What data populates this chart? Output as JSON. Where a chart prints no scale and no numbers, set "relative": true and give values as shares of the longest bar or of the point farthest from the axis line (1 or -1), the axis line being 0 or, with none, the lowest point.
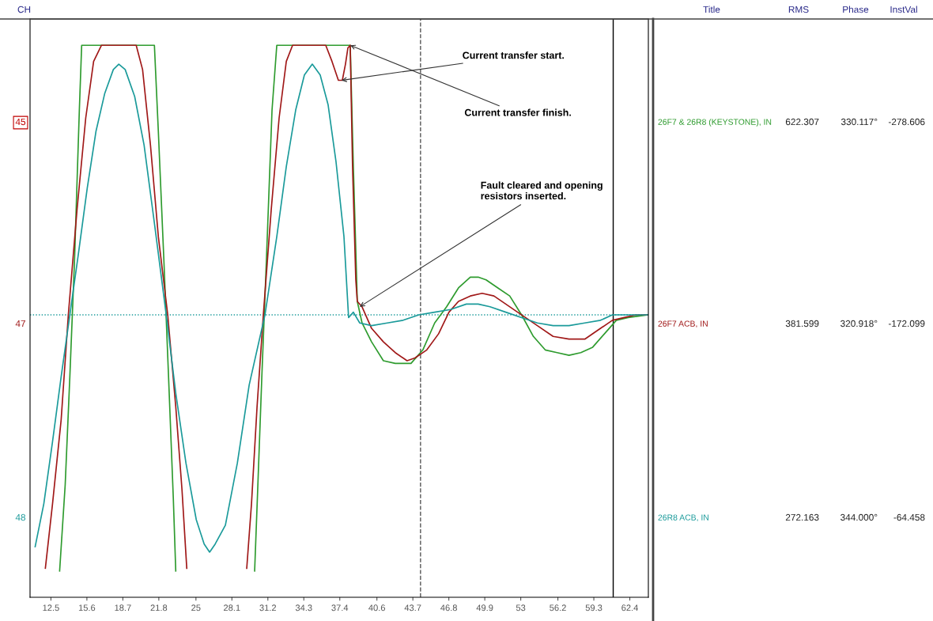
{
  "chart_data": {
    "type": "line",
    "relative": true,
    "tick_labels": "x",
    "legend": false,
    "grid": false,
    "marker": "none",
    "line_style": "solid",
    "xlim": [
      10.7,
      64
    ],
    "xticks": [
      12.5,
      15.6,
      18.7,
      21.8,
      25,
      28.1,
      31.2,
      34.3,
      37.4,
      40.6,
      43.7,
      46.8,
      49.9,
      53,
      56.2,
      59.3,
      62.4
    ],
    "series": [
      {
        "name": "26F7 & 26R8 (KEYSTONE), IN",
        "color": "#2e9b2e",
        "x": [
          13.25,
          13.73,
          14.13,
          14.54,
          14.95,
          15.15,
          21.42,
          21.76,
          22.23,
          22.64,
          23.05,
          23.26,
          26.5,
          30.06,
          30.34,
          30.68,
          31.08,
          31.56,
          31.97,
          37.89,
          38.3,
          38.57,
          38.91,
          39.32,
          40.14,
          41.16,
          42.18,
          43.2,
          43.54,
          44.56,
          45.58,
          46.61,
          47.63,
          48.65,
          49.33,
          50.01,
          51.03,
          52.05,
          53.07,
          54.09,
          55.11,
          56.13,
          57.16,
          58.18,
          59.2,
          60.22,
          61.24,
          62.26,
          63.96
        ],
        "values": [
          -0.95,
          -0.63,
          -0.23,
          0.21,
          0.76,
          1,
          1,
          0.68,
          0.21,
          -0.23,
          -0.68,
          -0.95,
          null,
          -0.95,
          -0.63,
          -0.23,
          0.21,
          0.76,
          1,
          1,
          1,
          0.55,
          0.05,
          -0.03,
          -0.1,
          -0.17,
          -0.18,
          -0.18,
          -0.18,
          -0.13,
          -0.03,
          0.03,
          0.1,
          0.14,
          0.14,
          0.13,
          0.1,
          0.07,
          0,
          -0.08,
          -0.13,
          -0.14,
          -0.15,
          -0.14,
          -0.12,
          -0.07,
          -0.02,
          -0.01,
          0
        ]
      },
      {
        "name": "26F7 ACB, IN",
        "color": "#a01818",
        "x": [
          12.02,
          12.64,
          13.38,
          14.0,
          14.75,
          15.5,
          16.18,
          16.86,
          19.85,
          20.4,
          21.08,
          21.76,
          22.57,
          23.26,
          23.8,
          24.21,
          26.8,
          29.38,
          29.79,
          30.27,
          30.81,
          31.49,
          32.17,
          32.79,
          33.33,
          36.19,
          36.73,
          37.28,
          37.62,
          37.89,
          38.1,
          38.3,
          38.5,
          38.78,
          38.91,
          39.32,
          40.14,
          41.16,
          42.18,
          43.2,
          43.88,
          44.9,
          45.92,
          46.81,
          47.63,
          48.65,
          49.67,
          50.69,
          51.71,
          52.73,
          53.41,
          54.43,
          55.79,
          57.16,
          58.52,
          59.88,
          60.9,
          61.92,
          62.94,
          63.96
        ],
        "values": [
          -0.94,
          -0.7,
          -0.39,
          0,
          0.39,
          0.73,
          0.94,
          1,
          1,
          0.91,
          0.63,
          0.29,
          0,
          -0.34,
          -0.65,
          -0.94,
          null,
          -0.94,
          -0.7,
          -0.34,
          0,
          0.39,
          0.73,
          0.94,
          1,
          1,
          0.94,
          0.87,
          0.87,
          0.93,
          0.99,
          1,
          0.55,
          0.13,
          0.05,
          0.03,
          -0.05,
          -0.1,
          -0.14,
          -0.17,
          -0.16,
          -0.13,
          -0.07,
          0.01,
          0.05,
          0.07,
          0.08,
          0.07,
          0.04,
          0.01,
          -0.01,
          -0.04,
          -0.08,
          -0.09,
          -0.09,
          -0.05,
          -0.02,
          -0.01,
          0,
          0
        ]
      },
      {
        "name": "26R8 ACB, IN",
        "color": "#1a9a9a",
        "x": [
          11.14,
          11.89,
          12.64,
          13.38,
          14.13,
          14.88,
          15.63,
          16.38,
          17.13,
          17.88,
          18.35,
          18.9,
          19.72,
          20.53,
          21.42,
          22.44,
          23.26,
          24.14,
          25.03,
          25.71,
          26.18,
          26.66,
          27.54,
          28.57,
          29.59,
          30.95,
          31.97,
          32.79,
          33.6,
          34.35,
          35.03,
          35.71,
          36.39,
          37.07,
          37.76,
          38.16,
          38.57,
          39.12,
          40.14,
          41.5,
          42.86,
          44.22,
          45.58,
          46.95,
          48.31,
          49.33,
          50.35,
          51.71,
          53.07,
          54.43,
          55.79,
          57.16,
          58.52,
          59.88,
          60.9,
          61.92,
          63.96
        ],
        "values": [
          -0.86,
          -0.7,
          -0.47,
          -0.23,
          0,
          0.23,
          0.47,
          0.68,
          0.82,
          0.91,
          0.93,
          0.91,
          0.81,
          0.63,
          0.34,
          0,
          -0.29,
          -0.55,
          -0.76,
          -0.85,
          -0.88,
          -0.85,
          -0.78,
          -0.55,
          -0.26,
          0,
          0.29,
          0.55,
          0.76,
          0.89,
          0.93,
          0.89,
          0.78,
          0.57,
          0.29,
          -0.01,
          0.01,
          -0.03,
          -0.04,
          -0.03,
          -0.02,
          0,
          0.01,
          0.02,
          0.04,
          0.04,
          0.03,
          0.01,
          -0.01,
          -0.03,
          -0.04,
          -0.04,
          -0.03,
          -0.02,
          0,
          0,
          0
        ]
      }
    ],
    "ref_lines": [
      {
        "axis": "y",
        "value": 0,
        "color": "#1a9a9a",
        "line_style": "dotted"
      },
      {
        "axis": "x",
        "value": 44.36,
        "color": "#555555",
        "line_style": "dashed"
      },
      {
        "axis": "x",
        "value": 60.97,
        "color": "#000000",
        "line_style": "solid"
      }
    ],
    "annotations": [
      {
        "text": "Current transfer start.",
        "x": 37.55,
        "y": 0.87
      },
      {
        "text": "Current transfer finish.",
        "x": 38.3,
        "y": 1
      },
      {
        "text": "Fault cleared and opening\nresistors inserted.",
        "x": 39.12,
        "y": 0.03
      },
      "CH",
      "45",
      "47",
      "48",
      "Title",
      "RMS",
      "Phase",
      "InstVal",
      "622.307",
      "330.117°",
      "-278.606",
      "381.599",
      "320.918°",
      "-172.099",
      "272.163",
      "344.000°",
      "-64.458"
    ]
  }
}
